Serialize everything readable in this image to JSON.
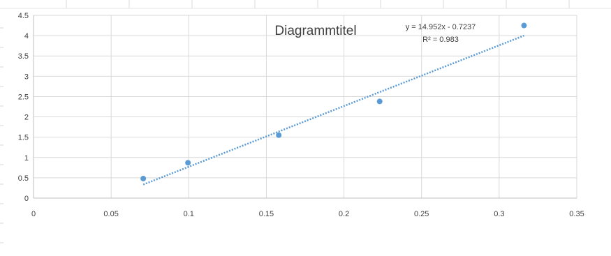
{
  "chart_data": {
    "type": "scatter",
    "title": "Diagrammtitel",
    "xlabel": "",
    "ylabel": "",
    "xlim": [
      0,
      0.35
    ],
    "ylim": [
      0,
      4.5
    ],
    "x_ticks": [
      "0",
      "0.05",
      "0.1",
      "0.15",
      "0.2",
      "0.25",
      "0.3",
      "0.35"
    ],
    "y_ticks": [
      "0",
      "0.5",
      "1",
      "1.5",
      "2",
      "2.5",
      "3",
      "3.5",
      "4",
      "4.5"
    ],
    "grid": true,
    "series": [
      {
        "x": [
          0.0707,
          0.0995,
          0.158,
          0.223,
          0.316
        ],
        "y": [
          0.48,
          0.87,
          1.55,
          2.38,
          4.25
        ],
        "color": "#5B9BD5"
      }
    ],
    "trendline": {
      "type": "linear",
      "slope": 14.952,
      "intercept": -0.7237,
      "x_range": [
        0.0707,
        0.316
      ],
      "color": "#5B9BD5",
      "equation_label": "y = 14.952x - 0.7237",
      "r2_label": "R² = 0.983"
    }
  }
}
